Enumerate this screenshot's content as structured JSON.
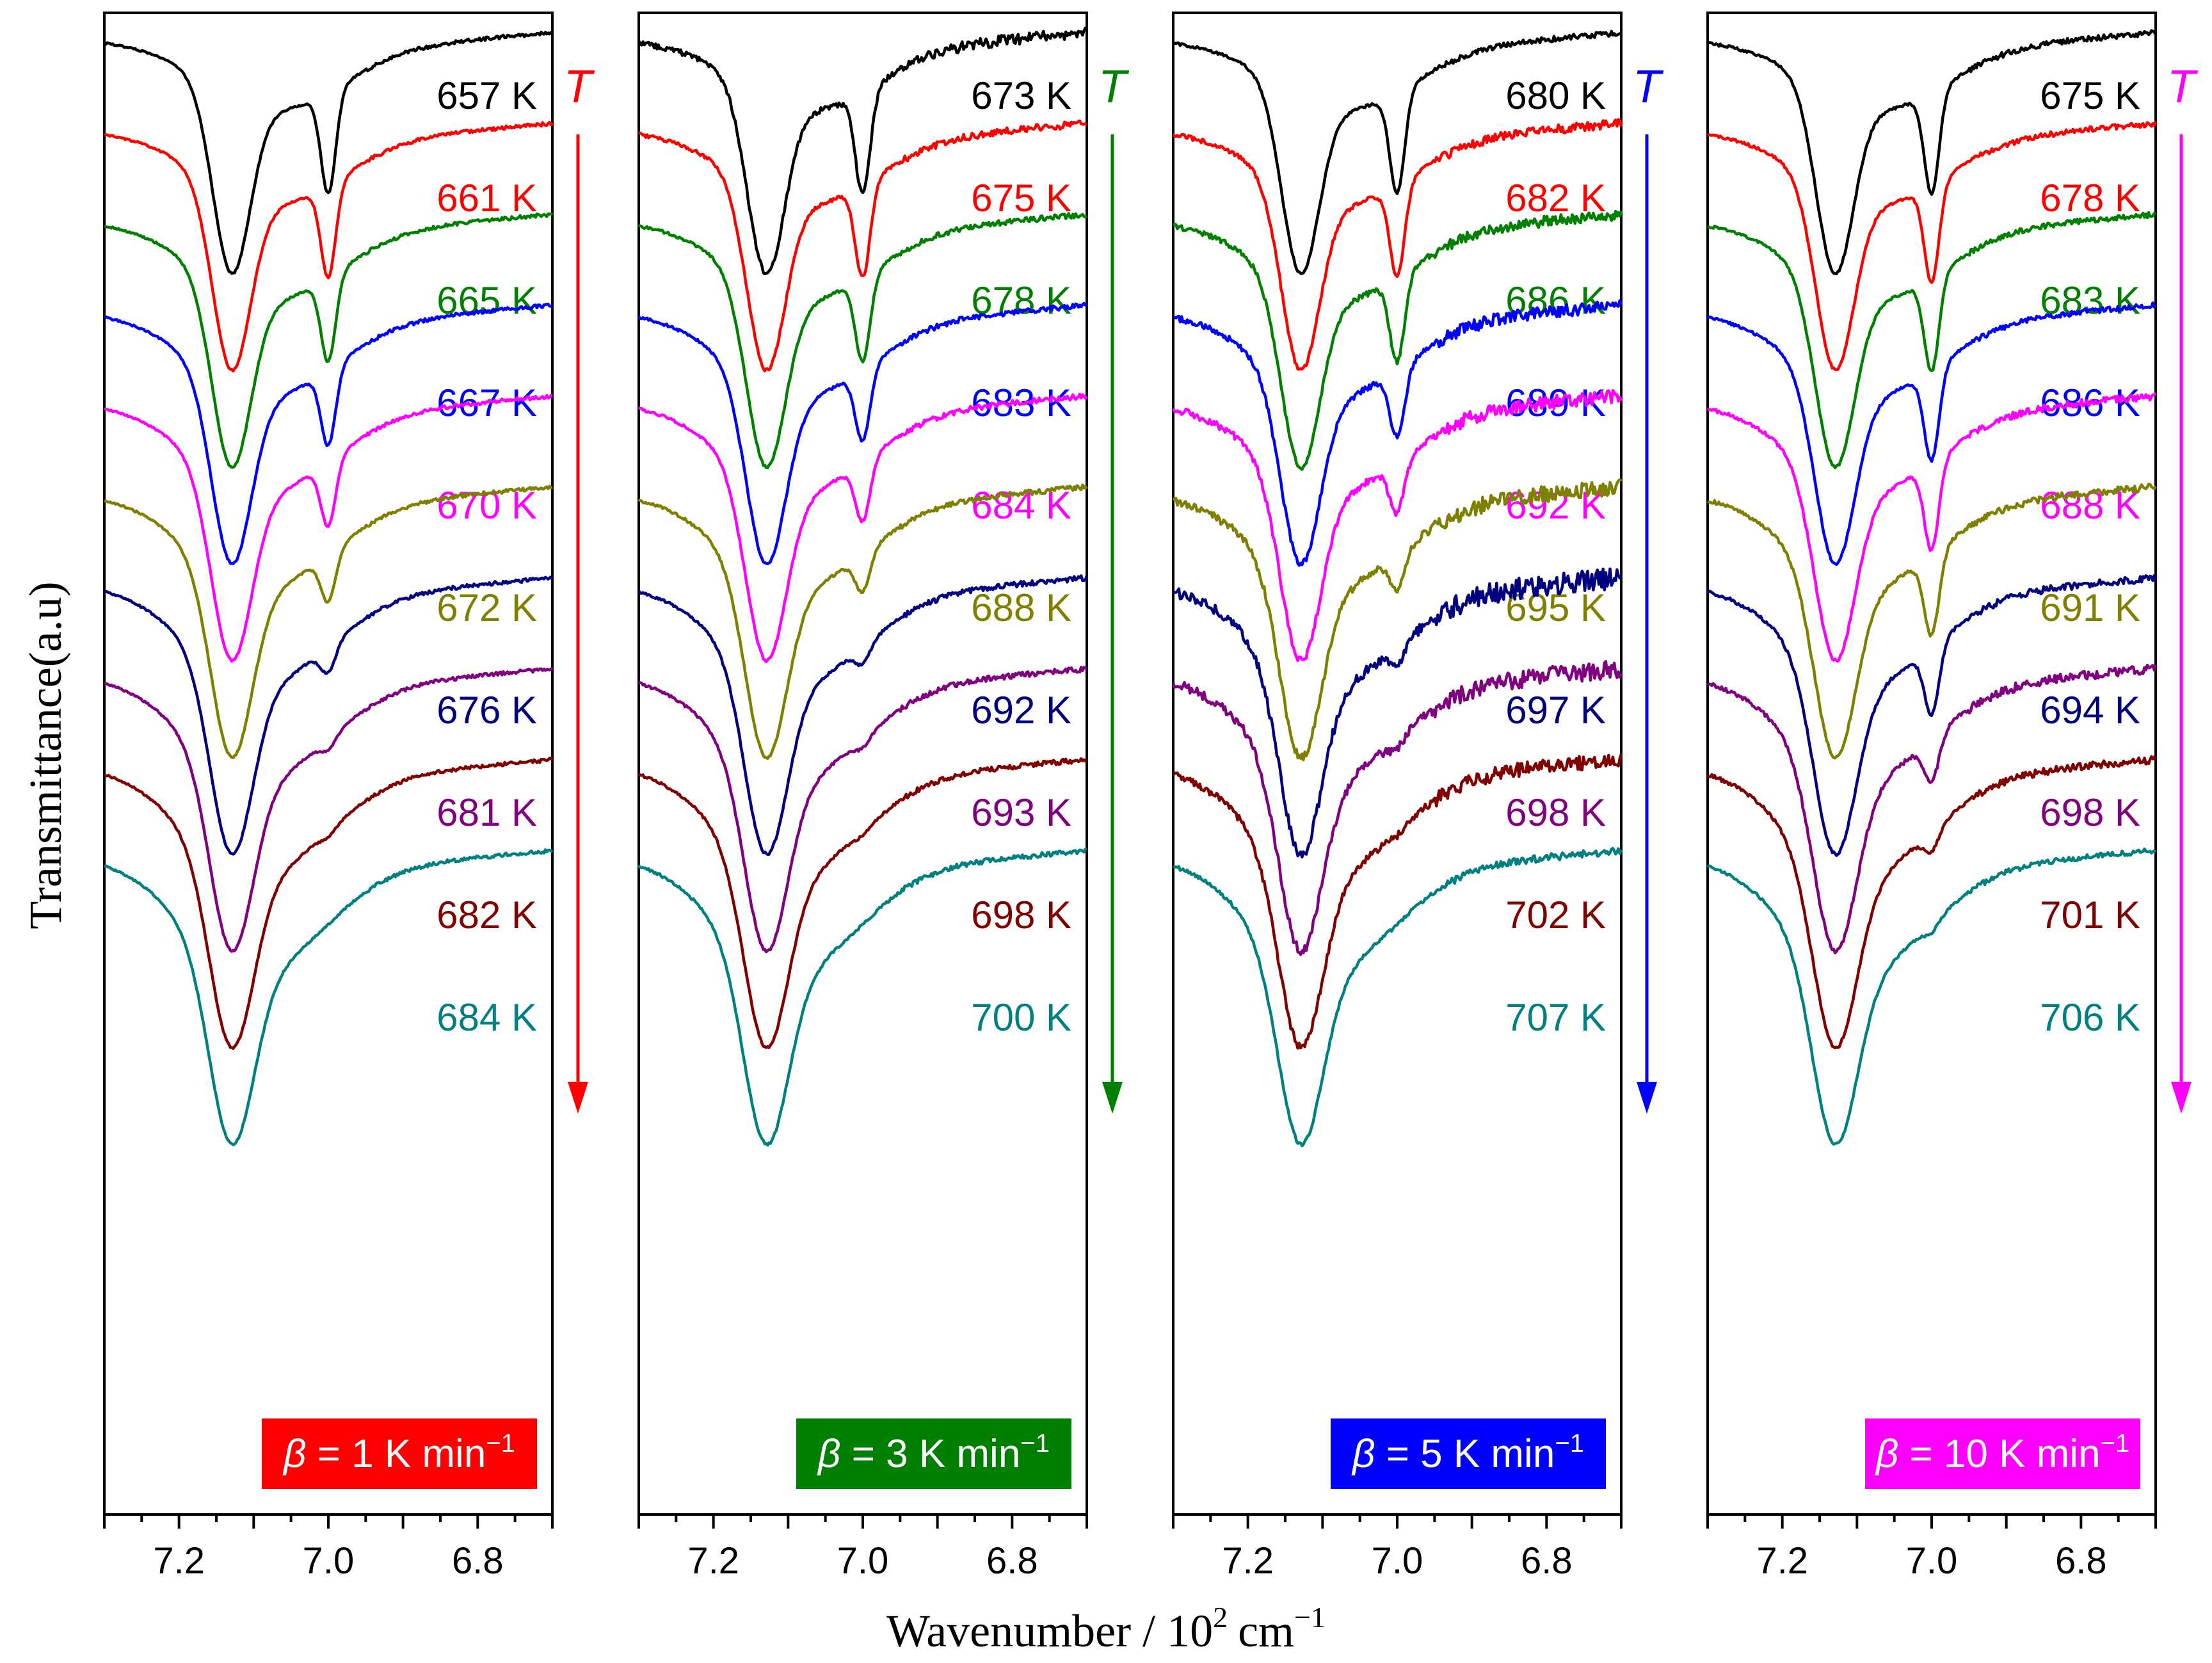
{
  "chart_data": {
    "type": "line",
    "title": "",
    "xlabel": "Wavenumber / 10",
    "xlabel_sup": "2",
    "xlabel_unit": "cm",
    "xlabel_unit_sup": "−1",
    "ylabel": "Transmittance(a.u)",
    "xlim": [
      7.3,
      6.7
    ],
    "x_ticks": [
      "7.2",
      "7.0",
      "6.8"
    ],
    "x_tick_values": [
      7.2,
      7.0,
      6.8
    ],
    "arrow_label": "T",
    "panels": [
      {
        "beta_symbol": "β",
        "beta_value": " = 1 K min",
        "beta_unit_sup": "−1",
        "color": "#ff0000",
        "series": [
          {
            "name": "657 K",
            "color": "#000000",
            "peak2_depth": 0.6,
            "noise": 0.2
          },
          {
            "name": "661 K",
            "color": "#ff0000",
            "peak2_depth": 0.55,
            "noise": 0.2
          },
          {
            "name": "665 K",
            "color": "#008000",
            "peak2_depth": 0.5,
            "noise": 0.2
          },
          {
            "name": "667 K",
            "color": "#0000ff",
            "peak2_depth": 0.45,
            "noise": 0.2
          },
          {
            "name": "670 K",
            "color": "#ff00ff",
            "peak2_depth": 0.38,
            "noise": 0.2
          },
          {
            "name": "672 K",
            "color": "#808000",
            "peak2_depth": 0.28,
            "noise": 0.2
          },
          {
            "name": "676 K",
            "color": "#000080",
            "peak2_depth": 0.15,
            "noise": 0.2
          },
          {
            "name": "681 K",
            "color": "#800080",
            "peak2_depth": 0.06,
            "noise": 0.2
          },
          {
            "name": "682 K",
            "color": "#800000",
            "peak2_depth": 0.03,
            "noise": 0.2
          },
          {
            "name": "684 K",
            "color": "#008080",
            "peak2_depth": 0.0,
            "noise": 0.2
          }
        ]
      },
      {
        "beta_symbol": "β",
        "beta_value": " = 3 K min",
        "beta_unit_sup": "−1",
        "color": "#008000",
        "series": [
          {
            "name": "673 K",
            "color": "#000000",
            "peak2_depth": 0.6,
            "noise": 0.6
          },
          {
            "name": "675 K",
            "color": "#ff0000",
            "peak2_depth": 0.55,
            "noise": 0.4
          },
          {
            "name": "678 K",
            "color": "#008000",
            "peak2_depth": 0.5,
            "noise": 0.3
          },
          {
            "name": "683 K",
            "color": "#0000ff",
            "peak2_depth": 0.42,
            "noise": 0.3
          },
          {
            "name": "684 K",
            "color": "#ff00ff",
            "peak2_depth": 0.35,
            "noise": 0.3
          },
          {
            "name": "688 K",
            "color": "#808000",
            "peak2_depth": 0.22,
            "noise": 0.3
          },
          {
            "name": "692 K",
            "color": "#000080",
            "peak2_depth": 0.1,
            "noise": 0.3
          },
          {
            "name": "693 K",
            "color": "#800080",
            "peak2_depth": 0.05,
            "noise": 0.3
          },
          {
            "name": "698 K",
            "color": "#800000",
            "peak2_depth": 0.02,
            "noise": 0.3
          },
          {
            "name": "700 K",
            "color": "#008080",
            "peak2_depth": 0.0,
            "noise": 0.3
          }
        ]
      },
      {
        "beta_symbol": "β",
        "beta_value": " = 5 K min",
        "beta_unit_sup": "−1",
        "color": "#0000ff",
        "series": [
          {
            "name": "680 K",
            "color": "#000000",
            "peak2_depth": 0.6,
            "noise": 0.3
          },
          {
            "name": "682 K",
            "color": "#ff0000",
            "peak2_depth": 0.55,
            "noise": 0.5
          },
          {
            "name": "686 K",
            "color": "#008000",
            "peak2_depth": 0.5,
            "noise": 0.6
          },
          {
            "name": "689 K",
            "color": "#0000ff",
            "peak2_depth": 0.4,
            "noise": 0.7
          },
          {
            "name": "692 K",
            "color": "#ff00ff",
            "peak2_depth": 0.3,
            "noise": 0.8
          },
          {
            "name": "695 K",
            "color": "#808000",
            "peak2_depth": 0.2,
            "noise": 0.9
          },
          {
            "name": "697 K",
            "color": "#000080",
            "peak2_depth": 0.1,
            "noise": 1.2
          },
          {
            "name": "698 K",
            "color": "#800080",
            "peak2_depth": 0.05,
            "noise": 1.0
          },
          {
            "name": "702 K",
            "color": "#800000",
            "peak2_depth": 0.02,
            "noise": 0.8
          },
          {
            "name": "707 K",
            "color": "#008080",
            "peak2_depth": 0.0,
            "noise": 0.4
          }
        ]
      },
      {
        "beta_symbol": "β",
        "beta_value": " = 10 K min",
        "beta_unit_sup": "−1",
        "color": "#ff00ff",
        "series": [
          {
            "name": "675 K",
            "color": "#000000",
            "peak2_depth": 0.6,
            "noise": 0.3
          },
          {
            "name": "678 K",
            "color": "#ff0000",
            "peak2_depth": 0.58,
            "noise": 0.3
          },
          {
            "name": "683 K",
            "color": "#008000",
            "peak2_depth": 0.56,
            "noise": 0.3
          },
          {
            "name": "686 K",
            "color": "#0000ff",
            "peak2_depth": 0.54,
            "noise": 0.3
          },
          {
            "name": "688 K",
            "color": "#ff00ff",
            "peak2_depth": 0.52,
            "noise": 0.4
          },
          {
            "name": "691 K",
            "color": "#808000",
            "peak2_depth": 0.48,
            "noise": 0.4
          },
          {
            "name": "694 K",
            "color": "#000080",
            "peak2_depth": 0.4,
            "noise": 0.4
          },
          {
            "name": "698 K",
            "color": "#800080",
            "peak2_depth": 0.25,
            "noise": 0.5
          },
          {
            "name": "701 K",
            "color": "#800000",
            "peak2_depth": 0.12,
            "noise": 0.4
          },
          {
            "name": "706 K",
            "color": "#008080",
            "peak2_depth": 0.05,
            "noise": 0.3
          }
        ]
      }
    ]
  }
}
